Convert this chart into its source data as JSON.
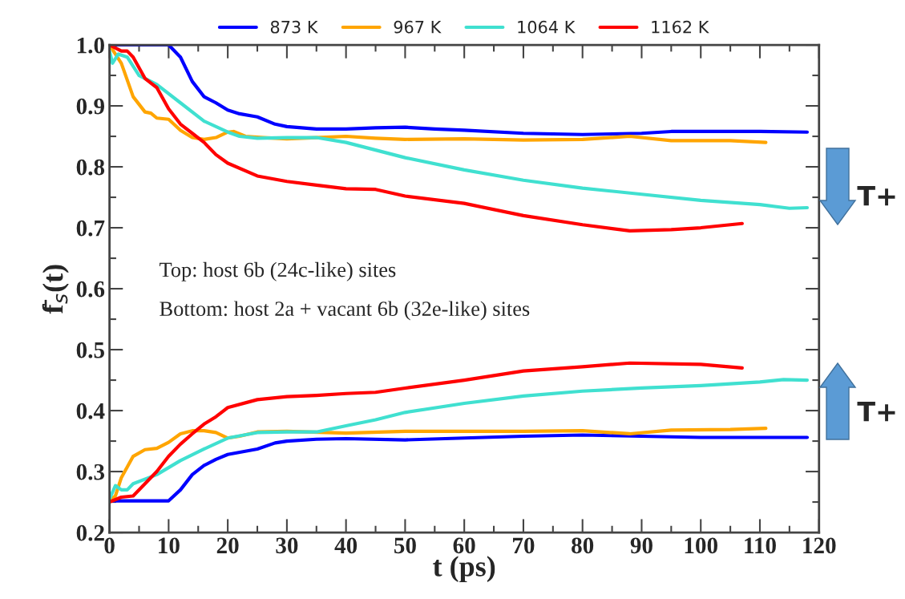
{
  "chart_data": {
    "type": "line",
    "xlabel": "t (ps)",
    "ylabel": "f̄$_{s}$(t)",
    "xlim": [
      0,
      120
    ],
    "ylim": [
      0.2,
      1.0
    ],
    "xticks": [
      0,
      10,
      20,
      30,
      40,
      50,
      60,
      70,
      80,
      90,
      100,
      110,
      120
    ],
    "yticks": [
      0.2,
      0.3,
      0.4,
      0.5,
      0.6,
      0.7,
      0.8,
      0.9,
      {
        "value": 1.0,
        "label": "1.0"
      }
    ],
    "grid": false,
    "legend": "top",
    "marker": "none",
    "line_style": "solid",
    "annotations": [
      "Top: host 6b (24c-like) sites",
      "Bottom: host 2a + vacant 6b (32e-like) sites",
      "T+",
      "T+"
    ],
    "series": [
      {
        "name": "873 K",
        "color": "#0000ff",
        "x": [
          0,
          10,
          12,
          14,
          16,
          18,
          20,
          22,
          25,
          28,
          30,
          35,
          40,
          45,
          50,
          55,
          60,
          70,
          80,
          90,
          95,
          100,
          110,
          118
        ],
        "values": [
          1.0,
          1.0,
          0.98,
          0.94,
          0.915,
          0.905,
          0.893,
          0.887,
          0.882,
          0.87,
          0.866,
          0.862,
          0.862,
          0.864,
          0.865,
          0.862,
          0.86,
          0.855,
          0.853,
          0.855,
          0.858,
          0.858,
          0.858,
          0.857
        ]
      },
      {
        "color": "#0000ff",
        "x": [
          0,
          10,
          12,
          14,
          16,
          18,
          20,
          25,
          28,
          30,
          35,
          40,
          50,
          60,
          70,
          80,
          90,
          100,
          110,
          118
        ],
        "values": [
          0.252,
          0.252,
          0.27,
          0.295,
          0.31,
          0.32,
          0.328,
          0.337,
          0.347,
          0.35,
          0.353,
          0.354,
          0.352,
          0.355,
          0.358,
          0.36,
          0.358,
          0.356,
          0.356,
          0.356
        ]
      },
      {
        "name": "967 K",
        "color": "#ffa500",
        "x": [
          0,
          2,
          4,
          6,
          7,
          8,
          10,
          12,
          14,
          16,
          18,
          20,
          21,
          23,
          26,
          30,
          35,
          40,
          45,
          50,
          60,
          70,
          80,
          88,
          95,
          105,
          111
        ],
        "values": [
          1.0,
          0.97,
          0.915,
          0.89,
          0.888,
          0.88,
          0.878,
          0.86,
          0.848,
          0.845,
          0.848,
          0.857,
          0.858,
          0.85,
          0.848,
          0.846,
          0.848,
          0.85,
          0.847,
          0.845,
          0.846,
          0.844,
          0.845,
          0.85,
          0.843,
          0.843,
          0.84
        ]
      },
      {
        "color": "#ffa500",
        "x": [
          0,
          1,
          2,
          4,
          6,
          8,
          10,
          12,
          14,
          16,
          18,
          20,
          22,
          25,
          30,
          40,
          50,
          60,
          70,
          80,
          88,
          95,
          105,
          111
        ],
        "values": [
          0.252,
          0.26,
          0.29,
          0.325,
          0.336,
          0.338,
          0.348,
          0.362,
          0.367,
          0.367,
          0.364,
          0.355,
          0.358,
          0.365,
          0.366,
          0.363,
          0.366,
          0.366,
          0.366,
          0.367,
          0.362,
          0.368,
          0.369,
          0.371
        ]
      },
      {
        "name": "1064 K",
        "color": "#40e0d0",
        "x": [
          0,
          0.5,
          1.5,
          3,
          5,
          8,
          12,
          16,
          20,
          22,
          25,
          30,
          35,
          40,
          50,
          60,
          70,
          80,
          90,
          100,
          110,
          115,
          118
        ],
        "values": [
          0.99,
          0.97,
          0.985,
          0.98,
          0.95,
          0.935,
          0.905,
          0.875,
          0.857,
          0.85,
          0.847,
          0.848,
          0.848,
          0.84,
          0.815,
          0.795,
          0.778,
          0.765,
          0.755,
          0.745,
          0.738,
          0.732,
          0.733
        ]
      },
      {
        "color": "#40e0d0",
        "x": [
          0,
          1,
          2,
          3,
          4,
          8,
          12,
          16,
          20,
          25,
          30,
          35,
          40,
          45,
          50,
          60,
          70,
          80,
          90,
          100,
          110,
          114,
          118
        ],
        "values": [
          0.255,
          0.277,
          0.27,
          0.27,
          0.28,
          0.295,
          0.318,
          0.337,
          0.355,
          0.364,
          0.365,
          0.365,
          0.375,
          0.385,
          0.397,
          0.412,
          0.424,
          0.432,
          0.437,
          0.441,
          0.447,
          0.451,
          0.45
        ]
      },
      {
        "name": "1162 K",
        "color": "#ff0000",
        "x": [
          0,
          2,
          3,
          4,
          6,
          8,
          10,
          12,
          14,
          16,
          18,
          20,
          25,
          30,
          35,
          40,
          45,
          50,
          60,
          70,
          80,
          88,
          95,
          100,
          107
        ],
        "values": [
          1.0,
          0.99,
          0.99,
          0.98,
          0.945,
          0.93,
          0.895,
          0.87,
          0.855,
          0.84,
          0.82,
          0.806,
          0.785,
          0.776,
          0.77,
          0.764,
          0.763,
          0.752,
          0.74,
          0.72,
          0.705,
          0.695,
          0.697,
          0.7,
          0.707
        ]
      },
      {
        "color": "#ff0000",
        "x": [
          0,
          2,
          4,
          6,
          8,
          10,
          12,
          14,
          16,
          18,
          20,
          25,
          30,
          35,
          40,
          45,
          50,
          60,
          70,
          80,
          88,
          100,
          107
        ],
        "values": [
          0.25,
          0.258,
          0.26,
          0.28,
          0.3,
          0.325,
          0.345,
          0.362,
          0.378,
          0.39,
          0.405,
          0.418,
          0.423,
          0.425,
          0.428,
          0.43,
          0.437,
          0.45,
          0.465,
          0.472,
          0.478,
          0.476,
          0.47
        ]
      }
    ]
  }
}
